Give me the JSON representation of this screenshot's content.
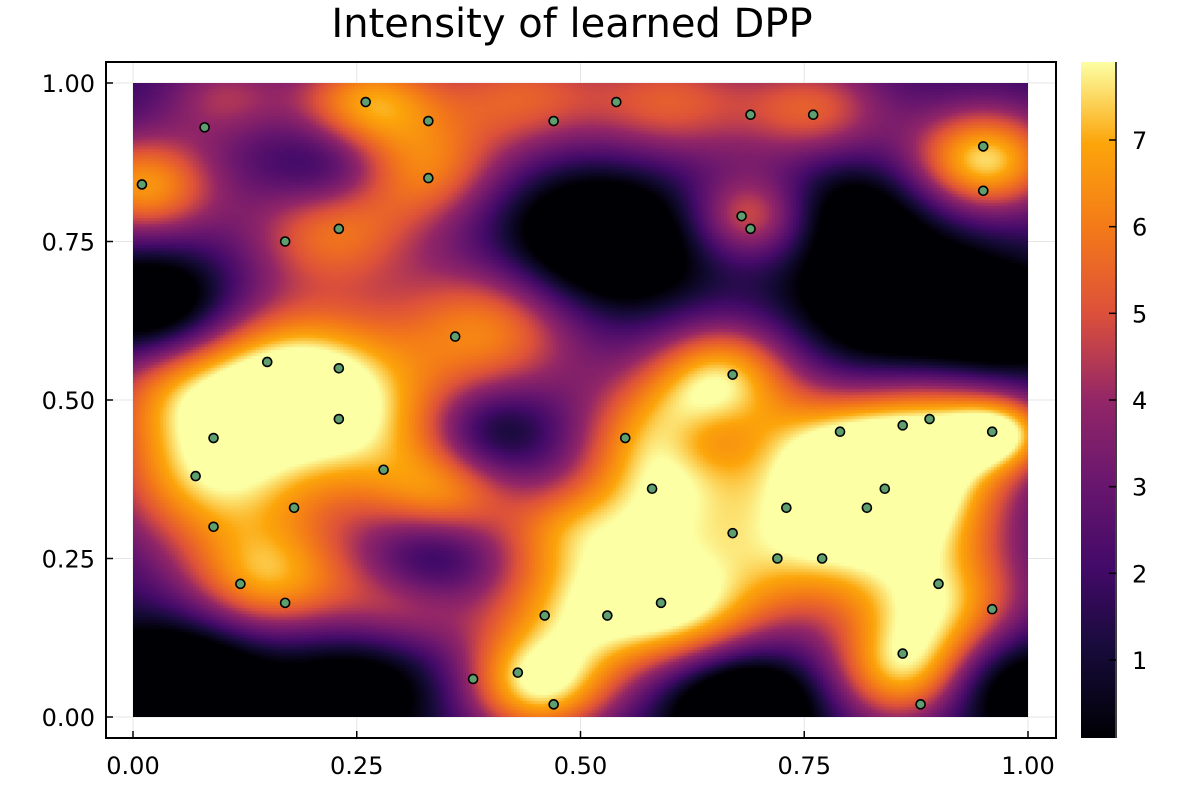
{
  "chart_data": {
    "type": "heatmap",
    "title": "Intensity of learned DPP",
    "xlabel": "",
    "ylabel": "",
    "xlim": [
      0,
      1
    ],
    "ylim": [
      0,
      1
    ],
    "x_ticks": [
      "0.00",
      "0.25",
      "0.50",
      "0.75",
      "1.00"
    ],
    "y_ticks": [
      "0.00",
      "0.25",
      "0.50",
      "0.75",
      "1.00"
    ],
    "grid": true,
    "colormap": "inferno",
    "colorbar": {
      "range": [
        0.1,
        7.9
      ],
      "ticks": [
        "1",
        "2",
        "3",
        "4",
        "5",
        "6",
        "7"
      ]
    },
    "points_color": "#5f9e6e",
    "points": [
      [
        0.01,
        0.84
      ],
      [
        0.08,
        0.93
      ],
      [
        0.26,
        0.97
      ],
      [
        0.33,
        0.94
      ],
      [
        0.33,
        0.85
      ],
      [
        0.47,
        0.94
      ],
      [
        0.54,
        0.97
      ],
      [
        0.69,
        0.95
      ],
      [
        0.76,
        0.95
      ],
      [
        0.95,
        0.9
      ],
      [
        0.95,
        0.83
      ],
      [
        0.17,
        0.75
      ],
      [
        0.23,
        0.77
      ],
      [
        0.68,
        0.79
      ],
      [
        0.69,
        0.77
      ],
      [
        0.36,
        0.6
      ],
      [
        0.15,
        0.56
      ],
      [
        0.23,
        0.55
      ],
      [
        0.67,
        0.54
      ],
      [
        0.23,
        0.47
      ],
      [
        0.09,
        0.44
      ],
      [
        0.55,
        0.44
      ],
      [
        0.79,
        0.45
      ],
      [
        0.86,
        0.46
      ],
      [
        0.89,
        0.47
      ],
      [
        0.96,
        0.45
      ],
      [
        0.07,
        0.38
      ],
      [
        0.28,
        0.39
      ],
      [
        0.18,
        0.33
      ],
      [
        0.58,
        0.36
      ],
      [
        0.73,
        0.33
      ],
      [
        0.82,
        0.33
      ],
      [
        0.84,
        0.36
      ],
      [
        0.09,
        0.3
      ],
      [
        0.67,
        0.29
      ],
      [
        0.72,
        0.25
      ],
      [
        0.77,
        0.25
      ],
      [
        0.12,
        0.21
      ],
      [
        0.17,
        0.18
      ],
      [
        0.46,
        0.16
      ],
      [
        0.53,
        0.16
      ],
      [
        0.59,
        0.18
      ],
      [
        0.9,
        0.21
      ],
      [
        0.96,
        0.17
      ],
      [
        0.86,
        0.1
      ],
      [
        0.43,
        0.07
      ],
      [
        0.38,
        0.06
      ],
      [
        0.47,
        0.02
      ],
      [
        0.88,
        0.02
      ]
    ],
    "intensity_peaks": [
      [
        0.26,
        0.97,
        5.0,
        0.06
      ],
      [
        0.1,
        0.98,
        2.5,
        0.05
      ],
      [
        0.43,
        0.98,
        3.5,
        0.07
      ],
      [
        0.6,
        0.97,
        3.5,
        0.07
      ],
      [
        0.76,
        0.96,
        3.5,
        0.06
      ],
      [
        0.95,
        0.88,
        6.0,
        0.06
      ],
      [
        0.01,
        0.84,
        5.0,
        0.06
      ],
      [
        0.33,
        0.86,
        3.5,
        0.06
      ],
      [
        0.22,
        0.77,
        4.0,
        0.07
      ],
      [
        0.69,
        0.79,
        4.0,
        0.05
      ],
      [
        0.4,
        0.62,
        4.5,
        0.08
      ],
      [
        0.66,
        0.55,
        4.5,
        0.06
      ],
      [
        0.18,
        0.55,
        5.0,
        0.08
      ],
      [
        0.25,
        0.45,
        4.5,
        0.09
      ],
      [
        0.08,
        0.38,
        5.0,
        0.08
      ],
      [
        0.6,
        0.45,
        5.0,
        0.07
      ],
      [
        0.78,
        0.42,
        5.0,
        0.07
      ],
      [
        0.9,
        0.45,
        5.0,
        0.07
      ],
      [
        0.97,
        0.45,
        4.0,
        0.04
      ],
      [
        0.58,
        0.33,
        4.0,
        0.07
      ],
      [
        0.75,
        0.28,
        5.0,
        0.08
      ],
      [
        0.88,
        0.33,
        4.5,
        0.07
      ],
      [
        0.9,
        0.18,
        5.0,
        0.07
      ],
      [
        0.15,
        0.22,
        5.0,
        0.07
      ],
      [
        0.5,
        0.18,
        5.0,
        0.08
      ],
      [
        0.62,
        0.17,
        4.5,
        0.07
      ],
      [
        0.45,
        0.05,
        5.5,
        0.06
      ],
      [
        0.86,
        0.07,
        5.0,
        0.06
      ],
      [
        0.3,
        0.18,
        3.0,
        0.06
      ],
      [
        0.05,
        0.52,
        3.5,
        0.07
      ],
      [
        0.48,
        0.3,
        2.0,
        0.05
      ],
      [
        0.35,
        0.35,
        3.5,
        0.06
      ]
    ],
    "intensity_dips": [
      [
        0.52,
        0.75,
        4.5,
        0.08
      ],
      [
        0.85,
        0.66,
        4.0,
        0.08
      ],
      [
        0.97,
        0.62,
        3.0,
        0.06
      ],
      [
        0.02,
        0.65,
        4.0,
        0.06
      ],
      [
        0.05,
        0.05,
        5.0,
        0.07
      ],
      [
        0.68,
        0.02,
        5.0,
        0.06
      ],
      [
        0.22,
        0.87,
        2.0,
        0.05
      ],
      [
        0.4,
        0.45,
        2.5,
        0.05
      ],
      [
        0.33,
        0.25,
        2.5,
        0.05
      ],
      [
        0.64,
        0.44,
        1.5,
        0.04
      ],
      [
        0.98,
        0.05,
        3.5,
        0.06
      ],
      [
        0.25,
        0.05,
        3.0,
        0.07
      ],
      [
        0.8,
        0.8,
        2.5,
        0.06
      ]
    ]
  }
}
